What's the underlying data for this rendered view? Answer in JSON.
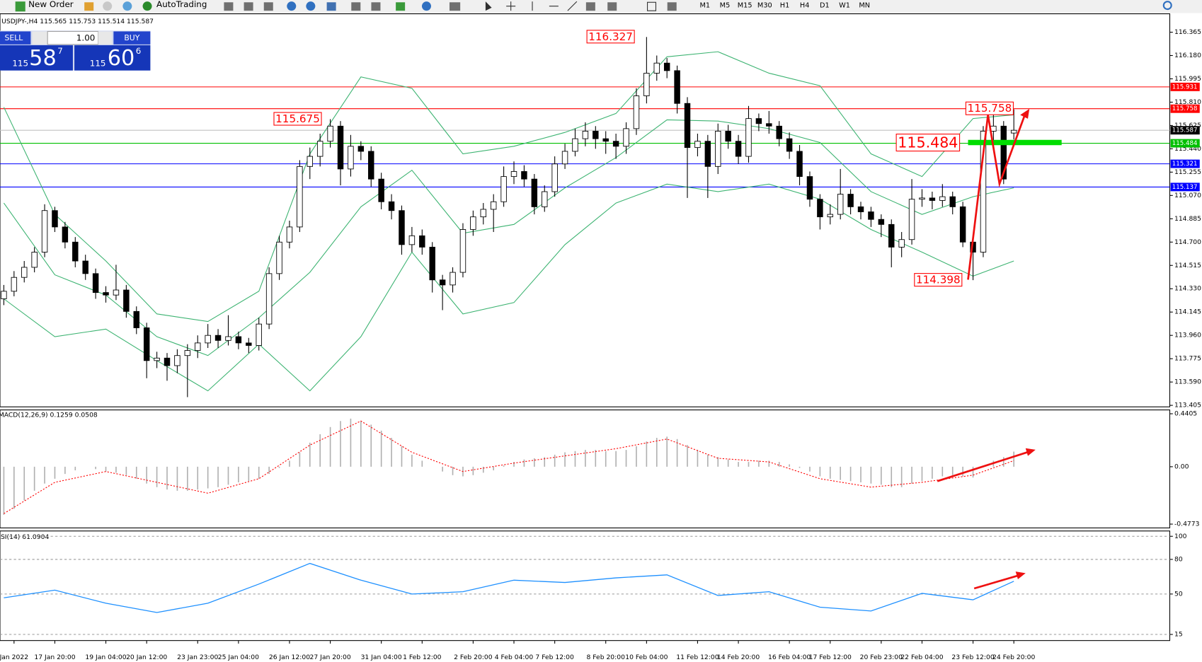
{
  "toolbar": {
    "new_order": "New Order",
    "autotrading": "AutoTrading",
    "timeframes": [
      "M1",
      "M5",
      "M15",
      "M30",
      "H1",
      "H4",
      "D1",
      "W1",
      "MN"
    ]
  },
  "trade_panel": {
    "sell": "SELL",
    "buy": "BUY",
    "lots": "1.00",
    "bid_big": "115",
    "bid_main": "58",
    "bid_pip": "7",
    "ask_big": "115",
    "ask_main": "60",
    "ask_pip": "6"
  },
  "chart_data": [
    {
      "type": "candlestick",
      "title": "USDJPY-,H4  115.565 115.753 115.514 115.587",
      "categories": [
        null,
        "Jan 2022",
        null,
        null,
        null,
        "17 Jan 20:00",
        null,
        null,
        null,
        null,
        "19 Jan 04:00",
        null,
        null,
        null,
        "20 Jan 12:00",
        null,
        null,
        null,
        null,
        "23 Jan 23:00",
        null,
        null,
        null,
        "25 Jan 04:00",
        null,
        null,
        null,
        null,
        "26 Jan 12:00",
        null,
        null,
        null,
        "27 Jan 20:00",
        null,
        null,
        null,
        null,
        "31 Jan 04:00",
        null,
        null,
        null,
        "1 Feb 12:00",
        null,
        null,
        null,
        null,
        "2 Feb 20:00",
        null,
        null,
        null,
        "4 Feb 04:00",
        null,
        null,
        null,
        "7 Feb 12:00",
        null,
        null,
        null,
        null,
        "8 Feb 20:00",
        null,
        null,
        null,
        "10 Feb 04:00",
        null,
        null,
        null,
        null,
        "11 Feb 12:00",
        null,
        null,
        null,
        "14 Feb 20:00",
        null,
        null,
        null,
        null,
        "16 Feb 04:00",
        null,
        null,
        null,
        "17 Feb 12:00",
        null,
        null,
        null,
        null,
        "20 Feb 23:00",
        null,
        null,
        null,
        "22 Feb 04:00",
        null,
        null,
        null,
        null,
        "23 Feb 12:00",
        null,
        null,
        null,
        "24 Feb 20:00"
      ],
      "open": [
        114.25,
        114.31,
        114.42,
        114.5,
        114.62,
        114.95,
        114.82,
        114.7,
        114.55,
        114.45,
        114.3,
        114.28,
        114.32,
        114.15,
        114.02,
        113.76,
        113.78,
        113.72,
        113.8,
        113.84,
        113.9,
        113.96,
        113.92,
        113.95,
        113.9,
        113.88,
        114.05,
        114.45,
        114.7,
        114.82,
        115.3,
        115.38,
        115.5,
        115.62,
        115.28,
        115.46,
        115.42,
        115.2,
        115.02,
        114.95,
        114.68,
        114.75,
        114.66,
        114.4,
        114.36,
        114.46,
        114.8,
        114.9,
        114.96,
        115.02,
        115.22,
        115.26,
        115.2,
        114.98,
        115.1,
        115.32,
        115.42,
        115.52,
        115.58,
        115.52,
        115.5,
        115.46,
        115.6,
        115.86,
        116.04,
        116.12,
        116.06,
        115.8,
        115.45,
        115.5,
        115.3,
        115.58,
        115.5,
        115.38,
        115.68,
        115.64,
        115.62,
        115.52,
        115.42,
        115.22,
        115.04,
        114.9,
        114.92,
        115.08,
        114.98,
        114.94,
        114.88,
        114.84,
        114.66,
        114.72,
        115.04,
        115.05,
        115.03,
        115.06,
        114.98,
        114.7,
        114.62,
        115.58,
        115.62,
        115.565
      ],
      "high": [
        114.36,
        114.47,
        114.55,
        114.66,
        115.0,
        114.98,
        114.86,
        114.74,
        114.6,
        114.49,
        114.35,
        114.52,
        114.36,
        114.19,
        114.06,
        113.83,
        113.82,
        113.85,
        113.89,
        113.96,
        114.05,
        114.01,
        114.12,
        113.99,
        113.94,
        114.1,
        114.5,
        114.75,
        114.87,
        115.35,
        115.45,
        115.56,
        115.675,
        115.66,
        115.55,
        115.5,
        115.46,
        115.25,
        115.08,
        114.99,
        114.82,
        114.8,
        114.7,
        114.44,
        114.5,
        114.85,
        114.95,
        115.01,
        115.08,
        115.3,
        115.34,
        115.31,
        115.24,
        115.15,
        115.38,
        115.48,
        115.6,
        115.65,
        115.62,
        115.58,
        115.56,
        115.65,
        115.92,
        116.327,
        116.18,
        116.16,
        116.1,
        115.85,
        115.56,
        115.55,
        115.64,
        115.63,
        115.55,
        115.78,
        115.72,
        115.74,
        115.66,
        115.57,
        115.47,
        115.26,
        115.08,
        115.0,
        115.28,
        115.12,
        115.02,
        114.98,
        114.92,
        114.88,
        114.78,
        115.2,
        115.12,
        115.1,
        115.16,
        115.1,
        115.02,
        114.76,
        115.62,
        115.758,
        115.66,
        115.753
      ],
      "low": [
        114.2,
        114.27,
        114.38,
        114.46,
        114.58,
        114.78,
        114.65,
        114.5,
        114.4,
        114.25,
        114.22,
        114.24,
        114.1,
        113.97,
        113.62,
        113.7,
        113.6,
        113.66,
        113.47,
        113.78,
        113.86,
        113.86,
        113.88,
        113.85,
        113.82,
        113.84,
        114.01,
        114.4,
        114.65,
        114.78,
        115.2,
        115.3,
        115.45,
        115.15,
        115.22,
        115.35,
        115.14,
        114.96,
        114.88,
        114.6,
        114.62,
        114.6,
        114.3,
        114.16,
        114.3,
        114.42,
        114.75,
        114.84,
        114.78,
        114.98,
        115.16,
        115.14,
        114.92,
        114.94,
        115.06,
        115.28,
        115.38,
        115.46,
        115.44,
        115.4,
        115.36,
        115.4,
        115.55,
        115.8,
        115.98,
        116.0,
        115.72,
        115.05,
        115.38,
        115.05,
        115.24,
        115.44,
        115.32,
        115.33,
        115.58,
        115.56,
        115.46,
        115.36,
        115.15,
        114.98,
        114.8,
        114.84,
        114.88,
        114.92,
        114.88,
        114.82,
        114.74,
        114.5,
        114.58,
        114.68,
        114.98,
        114.96,
        114.98,
        114.92,
        114.66,
        114.398,
        114.58,
        115.5,
        115.16,
        115.514
      ],
      "close": [
        114.31,
        114.42,
        114.5,
        114.62,
        114.95,
        114.82,
        114.7,
        114.55,
        114.45,
        114.3,
        114.28,
        114.32,
        114.15,
        114.02,
        113.76,
        113.78,
        113.72,
        113.8,
        113.84,
        113.9,
        113.96,
        113.92,
        113.95,
        113.9,
        113.88,
        114.05,
        114.45,
        114.7,
        114.82,
        115.3,
        115.38,
        115.5,
        115.62,
        115.28,
        115.46,
        115.42,
        115.2,
        115.02,
        114.95,
        114.68,
        114.75,
        114.66,
        114.4,
        114.36,
        114.46,
        114.8,
        114.9,
        114.96,
        115.02,
        115.22,
        115.26,
        115.2,
        114.98,
        115.1,
        115.32,
        115.42,
        115.52,
        115.58,
        115.52,
        115.5,
        115.46,
        115.6,
        115.86,
        116.04,
        116.12,
        116.06,
        115.8,
        115.45,
        115.5,
        115.3,
        115.58,
        115.5,
        115.38,
        115.68,
        115.64,
        115.62,
        115.52,
        115.42,
        115.22,
        115.04,
        114.9,
        114.92,
        115.08,
        114.98,
        114.94,
        114.88,
        114.84,
        114.66,
        114.72,
        115.04,
        115.05,
        115.03,
        115.06,
        114.98,
        114.7,
        114.62,
        115.58,
        115.62,
        115.2,
        115.587
      ],
      "up_color": "#ffffff",
      "down_color": "#000000",
      "series": [
        {
          "color": "#3cb371",
          "x": [
            0,
            5,
            10,
            15,
            20,
            25,
            30,
            35,
            40,
            45,
            50,
            55,
            60,
            65,
            70,
            75,
            80,
            85,
            90,
            95,
            99
          ],
          "values": [
            115.77,
            114.92,
            114.55,
            114.13,
            114.07,
            114.31,
            115.4,
            116.01,
            115.92,
            115.4,
            115.46,
            115.57,
            115.72,
            116.17,
            116.21,
            116.04,
            115.94,
            115.4,
            115.22,
            115.68,
            115.71
          ]
        },
        {
          "color": "#3cb371",
          "x": [
            0,
            5,
            10,
            15,
            20,
            25,
            30,
            35,
            40,
            45,
            50,
            55,
            60,
            65,
            70,
            75,
            80,
            85,
            90,
            95,
            99
          ],
          "values": [
            115.01,
            114.44,
            114.28,
            113.95,
            113.8,
            114.1,
            114.46,
            114.98,
            115.27,
            114.77,
            114.84,
            115.13,
            115.37,
            115.67,
            115.66,
            115.6,
            115.49,
            115.1,
            114.92,
            115.06,
            115.13
          ]
        },
        {
          "color": "#3cb371",
          "x": [
            0,
            5,
            10,
            15,
            20,
            25,
            30,
            35,
            40,
            45,
            50,
            55,
            60,
            65,
            70,
            75,
            80,
            85,
            90,
            95,
            99
          ],
          "values": [
            114.25,
            113.95,
            114.01,
            113.76,
            113.52,
            113.89,
            113.52,
            113.95,
            114.62,
            114.13,
            114.22,
            114.68,
            115.01,
            115.16,
            115.1,
            115.16,
            115.04,
            114.8,
            114.62,
            114.43,
            114.55
          ]
        }
      ],
      "hlines": [
        {
          "value": 115.931,
          "color": "#ff0000"
        },
        {
          "value": 115.758,
          "color": "#ff0000"
        },
        {
          "value": 115.587,
          "color": "#000000"
        },
        {
          "value": 115.484,
          "color": "#00c000"
        },
        {
          "value": 115.321,
          "color": "#0000ff"
        },
        {
          "value": 115.137,
          "color": "#0000ff"
        }
      ],
      "price_labels": [
        {
          "value": 116.327
        },
        {
          "value": 115.675
        },
        {
          "value": 115.484
        },
        {
          "value": 115.758
        },
        {
          "value": 114.398
        }
      ],
      "ylim": [
        113.393,
        116.511
      ],
      "yticks": [
        116.365,
        {
          "value": 116.18,
          "label": "116.180"
        },
        115.995,
        {
          "value": 115.81,
          "label": "115.810"
        },
        115.625,
        {
          "value": 115.44,
          "label": "115.440"
        },
        115.255,
        {
          "value": 115.07,
          "label": "115.070"
        },
        114.885,
        {
          "value": 114.7,
          "label": "114.700"
        },
        114.515,
        {
          "value": 114.33,
          "label": "114.330"
        },
        114.145,
        {
          "value": 113.96,
          "label": "113.960"
        },
        113.775,
        {
          "value": 113.59,
          "label": "113.590"
        },
        113.405
      ]
    },
    {
      "type": "macd",
      "title": "MACD(12,26,9) 0.1259 0.0508",
      "color": "#b0b0b0",
      "values": [
        -0.4,
        -0.35,
        -0.28,
        -0.2,
        -0.14,
        -0.1,
        -0.06,
        -0.03,
        0.0,
        -0.02,
        -0.04,
        -0.05,
        -0.07,
        -0.1,
        -0.14,
        -0.17,
        -0.19,
        -0.2,
        -0.2,
        -0.19,
        -0.18,
        -0.17,
        -0.15,
        -0.13,
        -0.12,
        -0.1,
        -0.06,
        -0.01,
        0.05,
        0.12,
        0.2,
        0.27,
        0.33,
        0.38,
        0.4,
        0.38,
        0.35,
        0.3,
        0.24,
        0.17,
        0.1,
        0.05,
        0.0,
        -0.04,
        -0.07,
        -0.08,
        -0.07,
        -0.05,
        -0.03,
        0.01,
        0.04,
        0.06,
        0.07,
        0.08,
        0.1,
        0.12,
        0.13,
        0.14,
        0.14,
        0.13,
        0.13,
        0.14,
        0.17,
        0.21,
        0.24,
        0.25,
        0.23,
        0.18,
        0.14,
        0.1,
        0.08,
        0.06,
        0.04,
        0.04,
        0.05,
        0.05,
        0.04,
        0.02,
        -0.01,
        -0.04,
        -0.08,
        -0.1,
        -0.11,
        -0.12,
        -0.13,
        -0.14,
        -0.15,
        -0.17,
        -0.17,
        -0.14,
        -0.12,
        -0.1,
        -0.08,
        -0.07,
        -0.08,
        -0.09,
        0.0,
        0.05,
        0.08,
        0.1259
      ],
      "series": [
        {
          "color": "#ff0000",
          "x": [
            0,
            5,
            10,
            15,
            20,
            25,
            30,
            35,
            40,
            45,
            50,
            55,
            60,
            65,
            70,
            75,
            80,
            85,
            90,
            95,
            99
          ],
          "values": [
            -0.39,
            -0.13,
            -0.04,
            -0.13,
            -0.22,
            -0.1,
            0.18,
            0.38,
            0.12,
            -0.04,
            0.03,
            0.09,
            0.15,
            0.23,
            0.07,
            0.04,
            -0.1,
            -0.17,
            -0.13,
            -0.07,
            0.0508
          ]
        }
      ],
      "ylim": [
        -0.509,
        0.4724
      ],
      "yticks": [
        0.4405,
        {
          "value": 0,
          "label": "0.00"
        },
        -0.4773
      ]
    },
    {
      "type": "line",
      "title": "RSI(14) 61.0904",
      "color": "#1e90ff",
      "x": [
        0,
        5,
        10,
        15,
        20,
        25,
        30,
        35,
        40,
        45,
        50,
        55,
        60,
        65,
        70,
        75,
        80,
        85,
        90,
        95,
        99
      ],
      "values": [
        46.7,
        53.4,
        42,
        34,
        42,
        58.6,
        76.5,
        62,
        50,
        52,
        62,
        60,
        64,
        66.6,
        48.7,
        52,
        38.6,
        35.3,
        50.6,
        45,
        61.0904
      ],
      "ylim": [
        9.7,
        104.6
      ],
      "yticks": [
        100,
        80,
        50,
        15
      ],
      "grid": true
    }
  ]
}
